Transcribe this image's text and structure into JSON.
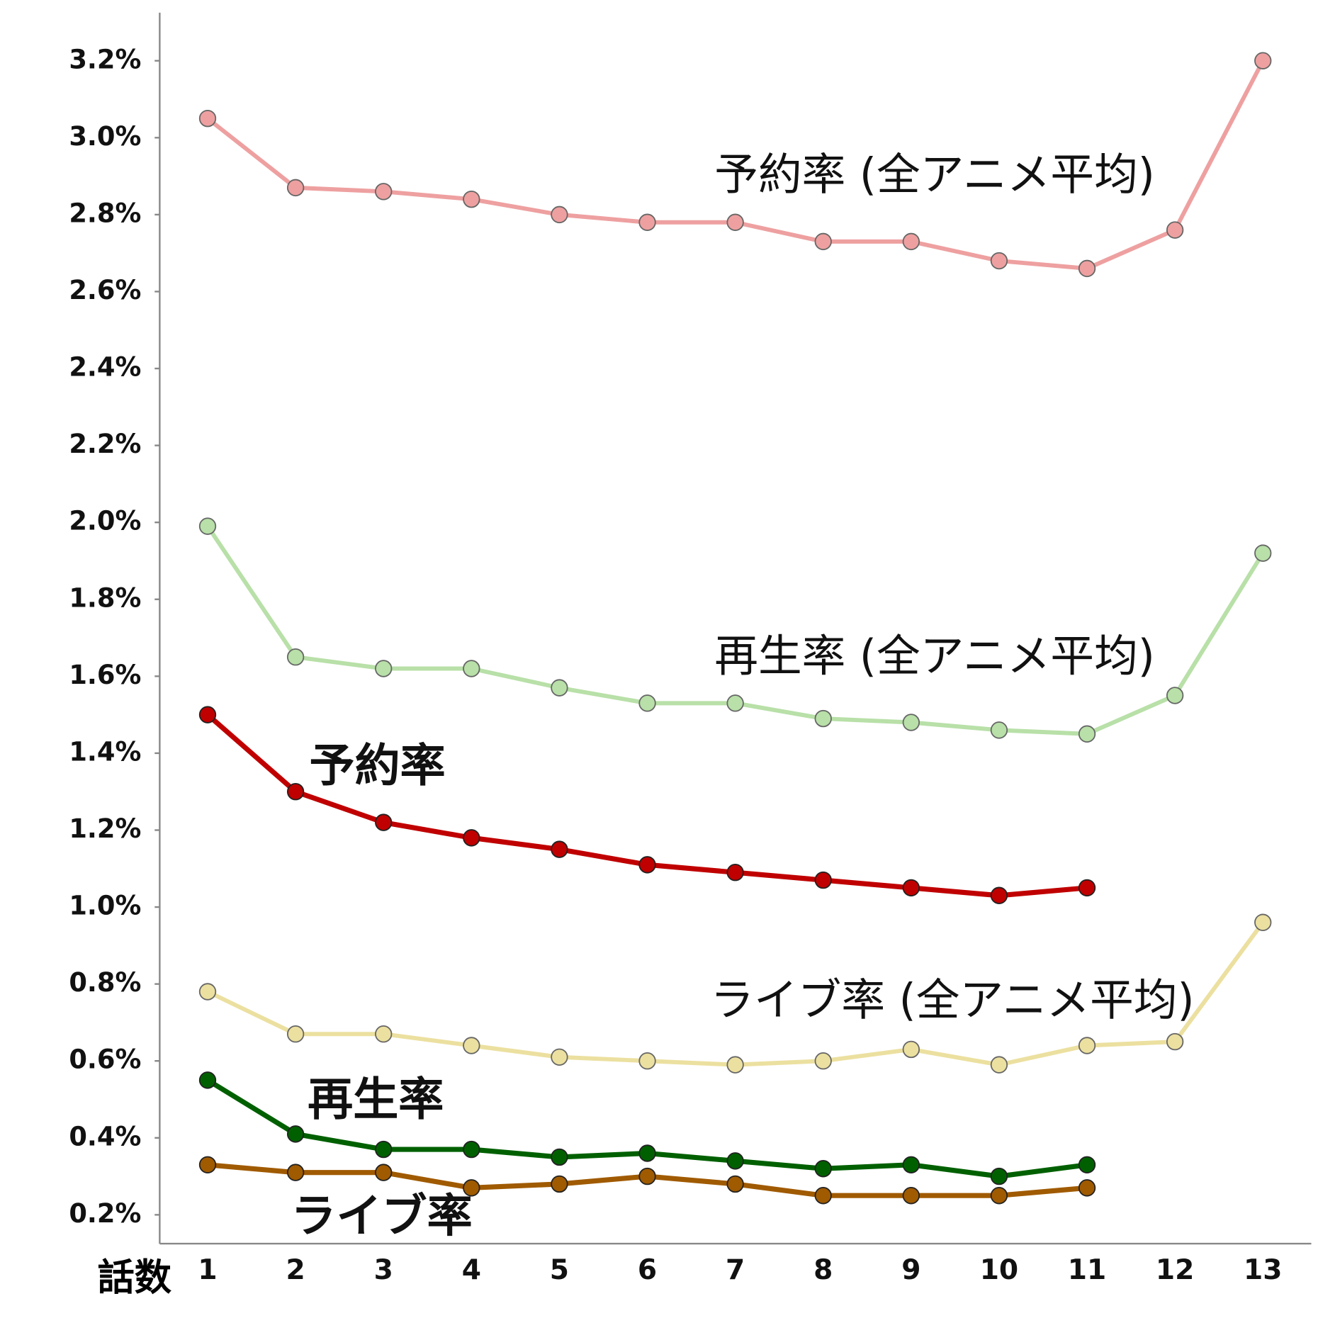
{
  "chart_data": {
    "type": "line",
    "x_label": "話数",
    "x": [
      1,
      2,
      3,
      4,
      5,
      6,
      7,
      8,
      9,
      10,
      11,
      12,
      13
    ],
    "xlim": [
      0.455,
      13.55
    ],
    "xticks": [
      1,
      2,
      3,
      4,
      5,
      6,
      7,
      8,
      9,
      10,
      11,
      12,
      13
    ],
    "ylim": [
      0.125,
      3.325
    ],
    "yticks": [
      {
        "value": 0.2,
        "label": "0.2%"
      },
      {
        "value": 0.4,
        "label": "0.4%"
      },
      {
        "value": 0.6,
        "label": "0.6%"
      },
      {
        "value": 0.8,
        "label": "0.8%"
      },
      {
        "value": 1.0,
        "label": "1.0%"
      },
      {
        "value": 1.2,
        "label": "1.2%"
      },
      {
        "value": 1.4,
        "label": "1.4%"
      },
      {
        "value": 1.6,
        "label": "1.6%"
      },
      {
        "value": 1.8,
        "label": "1.8%"
      },
      {
        "value": 2.0,
        "label": "2.0%"
      },
      {
        "value": 2.2,
        "label": "2.2%"
      },
      {
        "value": 2.4,
        "label": "2.4%"
      },
      {
        "value": 2.6,
        "label": "2.6%"
      },
      {
        "value": 2.8,
        "label": "2.8%"
      },
      {
        "value": 3.0,
        "label": "3.0%"
      },
      {
        "value": 3.2,
        "label": "3.2%"
      }
    ],
    "series": [
      {
        "name": "予約率 (全アニメ平均)",
        "color": "#eea0a0",
        "values": [
          3.05,
          2.87,
          2.86,
          2.84,
          2.8,
          2.78,
          2.78,
          2.73,
          2.73,
          2.68,
          2.66,
          2.76,
          3.2
        ]
      },
      {
        "name": "再生率 (全アニメ平均)",
        "color": "#b8e0a8",
        "values": [
          1.99,
          1.65,
          1.62,
          1.62,
          1.57,
          1.53,
          1.53,
          1.49,
          1.48,
          1.46,
          1.45,
          1.55,
          1.92
        ]
      },
      {
        "name": "ライブ率 (全アニメ平均)",
        "color": "#ece0a0",
        "values": [
          0.78,
          0.67,
          0.67,
          0.64,
          0.61,
          0.6,
          0.59,
          0.6,
          0.63,
          0.59,
          0.64,
          0.65,
          0.96
        ]
      },
      {
        "name": "予約率",
        "color": "#c00000",
        "values": [
          1.5,
          1.3,
          1.22,
          1.18,
          1.15,
          1.11,
          1.09,
          1.07,
          1.05,
          1.03,
          1.05,
          null,
          null
        ]
      },
      {
        "name": "再生率",
        "color": "#006000",
        "values": [
          0.55,
          0.41,
          0.37,
          0.37,
          0.35,
          0.36,
          0.34,
          0.32,
          0.33,
          0.3,
          0.33,
          null,
          null
        ]
      },
      {
        "name": "ライブ率",
        "color": "#a05a00",
        "values": [
          0.33,
          0.31,
          0.31,
          0.27,
          0.28,
          0.3,
          0.28,
          0.25,
          0.25,
          0.25,
          0.27,
          null,
          null
        ]
      }
    ]
  }
}
